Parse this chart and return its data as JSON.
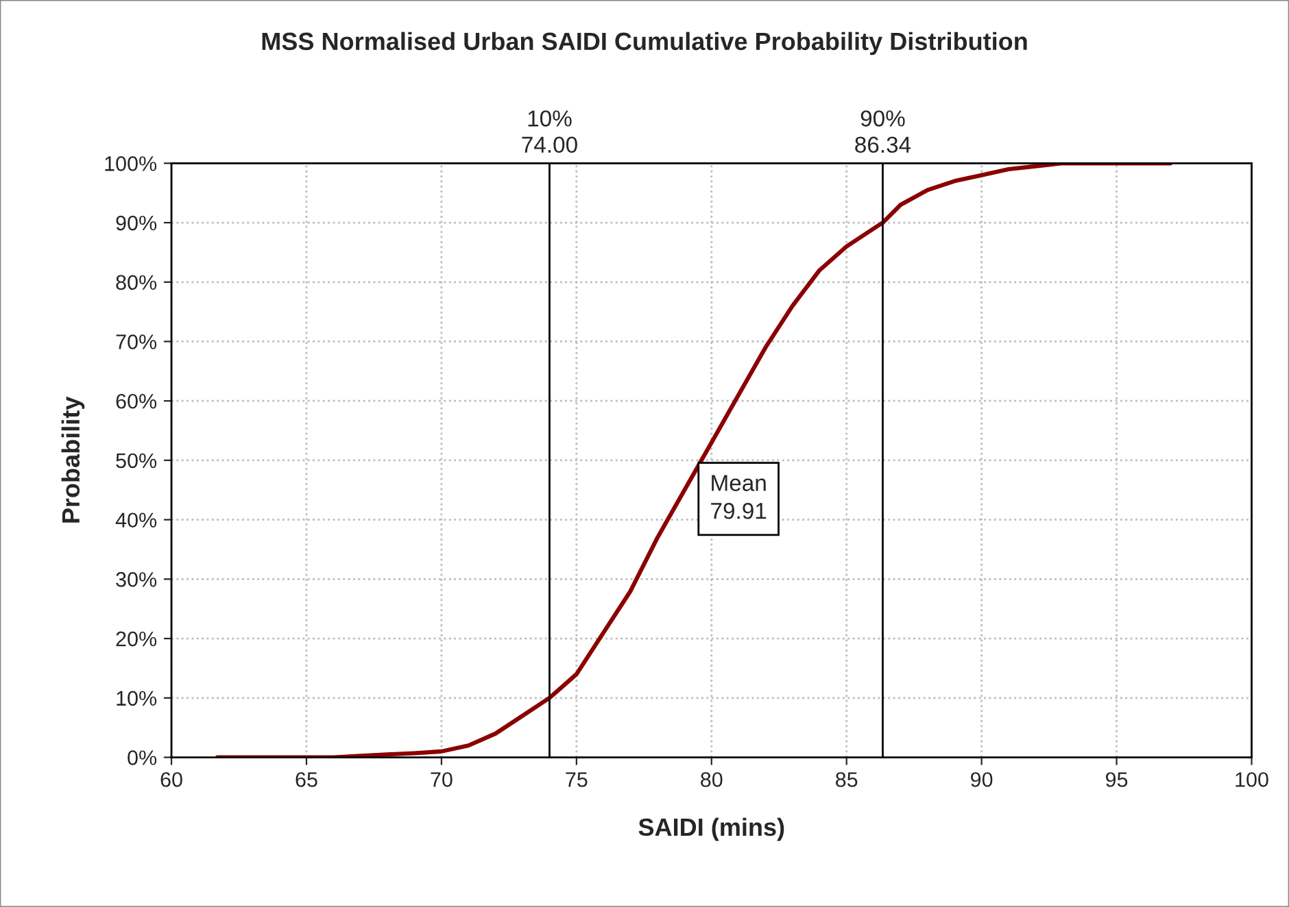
{
  "chart_data": {
    "type": "line",
    "title": "MSS Normalised Urban SAIDI Cumulative Probability Distribution",
    "xlabel": "SAIDI (mins)",
    "ylabel": "Probability",
    "x": [
      61.7,
      66,
      68,
      69,
      70,
      71,
      72,
      73,
      74,
      75,
      76,
      77,
      78,
      79,
      80,
      81,
      82,
      83,
      84,
      85,
      86,
      86.34,
      87,
      88,
      89,
      90,
      91,
      92,
      93,
      95,
      97
    ],
    "series": [
      {
        "color": "#8b0000",
        "values": [
          0,
          0,
          0.5,
          0.7,
          1,
          2,
          4,
          7,
          10,
          14,
          21,
          28,
          37,
          45,
          53,
          61,
          69,
          76,
          82,
          86,
          89,
          90,
          93,
          95.5,
          97,
          98,
          99,
          99.5,
          100,
          100,
          100
        ]
      }
    ],
    "xlim": [
      60,
      100
    ],
    "xticks": [
      60,
      65,
      70,
      75,
      80,
      85,
      90,
      95,
      100
    ],
    "ylim": [
      0,
      100
    ],
    "yticks": [
      {
        "value": 0,
        "label": "0%"
      },
      {
        "value": 10,
        "label": "10%"
      },
      {
        "value": 20,
        "label": "20%"
      },
      {
        "value": 30,
        "label": "30%"
      },
      {
        "value": 40,
        "label": "40%"
      },
      {
        "value": 50,
        "label": "50%"
      },
      {
        "value": 60,
        "label": "60%"
      },
      {
        "value": 70,
        "label": "70%"
      },
      {
        "value": 80,
        "label": "80%"
      },
      {
        "value": 90,
        "label": "90%"
      },
      {
        "value": 100,
        "label": "100%"
      }
    ],
    "ref_lines": [
      {
        "axis": "x",
        "value": 74.0,
        "label": "10%\n74.00",
        "color": "#000000"
      },
      {
        "axis": "x",
        "value": 86.34,
        "label": "90%\n86.34",
        "color": "#000000"
      }
    ],
    "annotations": [
      "Mean\n79.91"
    ],
    "grid": true,
    "legend": false,
    "marker": "none",
    "line_style": "solid"
  }
}
